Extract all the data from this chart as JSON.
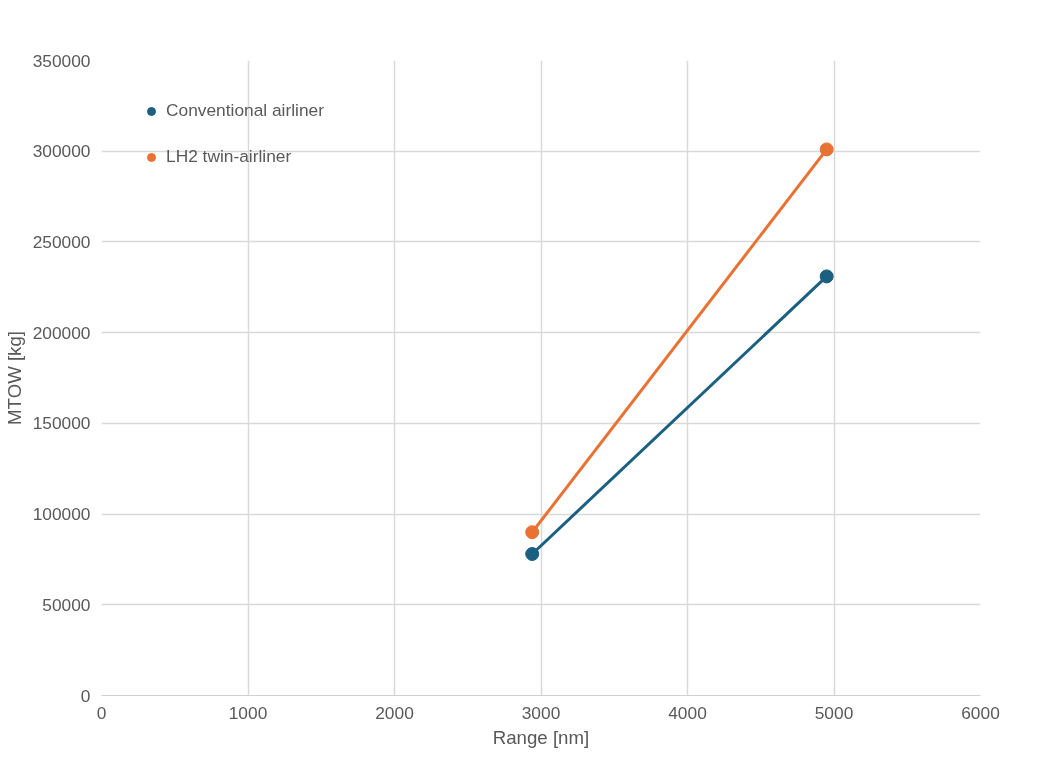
{
  "chart_data": {
    "type": "line",
    "xlabel": "Range [nm]",
    "ylabel": "MTOW [kg]",
    "xlim": [
      0,
      6000
    ],
    "xticks": [
      0,
      1000,
      2000,
      3000,
      4000,
      5000,
      6000
    ],
    "ylim": [
      0,
      350000
    ],
    "yticks": [
      0,
      50000,
      100000,
      150000,
      200000,
      250000,
      300000,
      350000
    ],
    "grid": true,
    "legend": "top left",
    "marker": "circle",
    "line_style": "solid",
    "x": [
      2940,
      4950
    ],
    "series": [
      {
        "name": "Conventional airliner",
        "color": "#1b6080",
        "values": [
          78000,
          231000
        ]
      },
      {
        "name": "LH2 twin-airliner",
        "color": "#e97132",
        "values": [
          90000,
          301000
        ]
      }
    ]
  }
}
